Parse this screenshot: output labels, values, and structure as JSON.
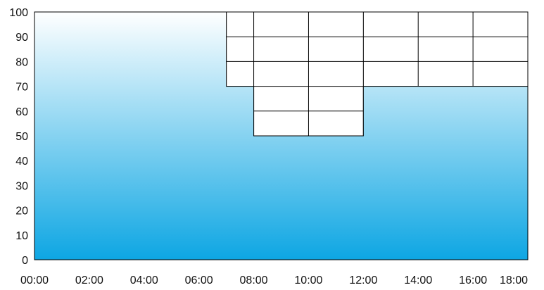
{
  "chart_data": {
    "type": "area",
    "title": "",
    "xlabel": "",
    "ylabel": "",
    "x_ticks": [
      "00:00",
      "02:00",
      "04:00",
      "06:00",
      "08:00",
      "10:00",
      "12:00",
      "14:00",
      "16:00",
      "18:00"
    ],
    "y_ticks": [
      "0",
      "10",
      "20",
      "30",
      "40",
      "50",
      "60",
      "70",
      "80",
      "90",
      "100"
    ],
    "xlim_hours": [
      0,
      18
    ],
    "ylim": [
      0,
      100
    ],
    "grid": "horizontal lines every 10 and vertical lines at 07:00, 08:00, 10:00, 12:00, 14:00 and 16:00, drawn only above the filled area",
    "series": [
      {
        "x_hours": [
          0,
          7,
          7,
          8,
          8,
          12,
          12,
          18
        ],
        "values": [
          100,
          100,
          70,
          70,
          50,
          50,
          70,
          70
        ]
      }
    ],
    "gradient": {
      "top": "#ffffff",
      "bottom": "#0da6e3"
    }
  }
}
